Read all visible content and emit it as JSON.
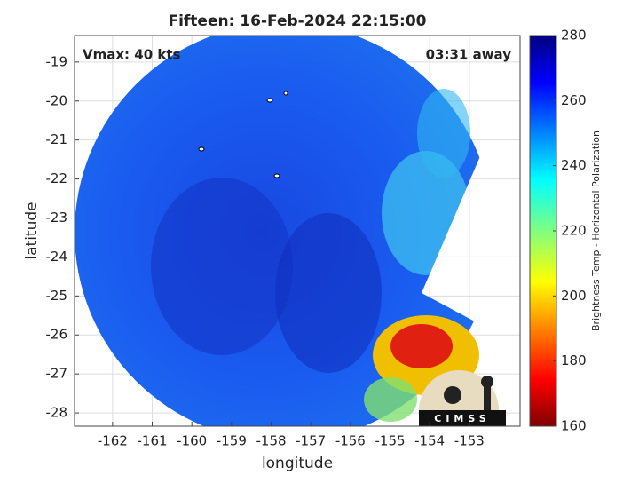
{
  "chart_data": {
    "type": "image",
    "title": "Fifteen: 16-Feb-2024 22:15:00",
    "annotations": [
      "Vmax: 40 kts",
      "03:31 away"
    ],
    "xlabel": "longitude",
    "ylabel": "latitude",
    "xlim": [
      -162.96,
      -151.72
    ],
    "xticks": [
      -162,
      -161,
      -160,
      -159,
      -158,
      -157,
      -156,
      -155,
      -154,
      -153
    ],
    "ylim": [
      -28.34,
      -18.32
    ],
    "yticks": [
      -28,
      -27,
      -26,
      -25,
      -24,
      -23,
      -22,
      -21,
      -20,
      -19
    ],
    "grid": true,
    "colorbar": {
      "label": "Brightness Temp - Horizontal Polarization",
      "lim": [
        160,
        280
      ],
      "ticks": [
        160,
        180,
        200,
        220,
        240,
        260,
        280
      ]
    },
    "logo": "CIMSS"
  }
}
